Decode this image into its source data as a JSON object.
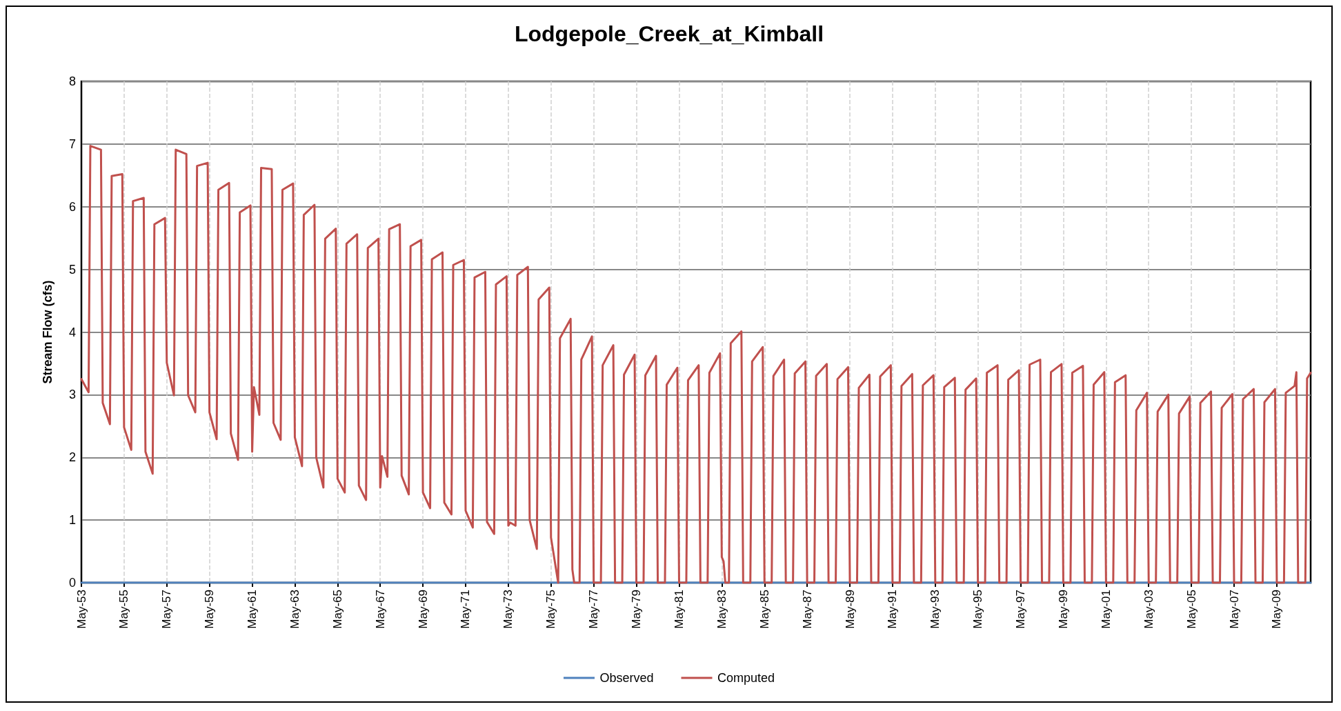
{
  "chart_data": {
    "type": "line",
    "title": "Lodgepole_Creek_at_Kimball",
    "ylabel": "Stream Flow (cfs)",
    "xlim": [
      "1953-05",
      "2010-12"
    ],
    "ylim": [
      0,
      8
    ],
    "yticks": [
      0,
      1,
      2,
      3,
      4,
      5,
      6,
      7,
      8
    ],
    "xticks": [
      {
        "value": "1953-05",
        "label": "May-53"
      },
      {
        "value": "1955-05",
        "label": "May-55"
      },
      {
        "value": "1957-05",
        "label": "May-57"
      },
      {
        "value": "1959-05",
        "label": "May-59"
      },
      {
        "value": "1961-05",
        "label": "May-61"
      },
      {
        "value": "1963-05",
        "label": "May-63"
      },
      {
        "value": "1965-05",
        "label": "May-65"
      },
      {
        "value": "1967-05",
        "label": "May-67"
      },
      {
        "value": "1969-05",
        "label": "May-69"
      },
      {
        "value": "1971-05",
        "label": "May-71"
      },
      {
        "value": "1973-05",
        "label": "May-73"
      },
      {
        "value": "1975-05",
        "label": "May-75"
      },
      {
        "value": "1977-05",
        "label": "May-77"
      },
      {
        "value": "1979-05",
        "label": "May-79"
      },
      {
        "value": "1981-05",
        "label": "May-81"
      },
      {
        "value": "1983-05",
        "label": "May-83"
      },
      {
        "value": "1985-05",
        "label": "May-85"
      },
      {
        "value": "1987-05",
        "label": "May-87"
      },
      {
        "value": "1989-05",
        "label": "May-89"
      },
      {
        "value": "1991-05",
        "label": "May-91"
      },
      {
        "value": "1993-05",
        "label": "May-93"
      },
      {
        "value": "1995-05",
        "label": "May-95"
      },
      {
        "value": "1997-05",
        "label": "May-97"
      },
      {
        "value": "1999-05",
        "label": "May-99"
      },
      {
        "value": "2001-05",
        "label": "May-01"
      },
      {
        "value": "2003-05",
        "label": "May-03"
      },
      {
        "value": "2005-05",
        "label": "May-05"
      },
      {
        "value": "2007-05",
        "label": "May-07"
      },
      {
        "value": "2009-05",
        "label": "May-09"
      }
    ],
    "grid": true,
    "legend": "bottom",
    "marker": "none",
    "line_style": "solid",
    "series": [
      {
        "name": "Observed",
        "color": "#4f81bd",
        "x": [
          "1953-05",
          "2010-12"
        ],
        "values": [
          0,
          0
        ]
      },
      {
        "name": "Computed",
        "color": "#c0504d",
        "x": [
          "1953-05",
          "1953-09",
          "1953-10",
          "1954-04",
          "1954-05",
          "1954-09",
          "1954-10",
          "1955-04",
          "1955-05",
          "1955-09",
          "1955-10",
          "1956-04",
          "1956-05",
          "1956-09",
          "1956-10",
          "1957-04",
          "1957-05",
          "1957-09",
          "1957-10",
          "1958-04",
          "1958-05",
          "1958-09",
          "1958-10",
          "1959-04",
          "1959-05",
          "1959-09",
          "1959-10",
          "1960-04",
          "1960-05",
          "1960-09",
          "1960-10",
          "1961-04",
          "1961-05",
          "1961-06",
          "1961-09",
          "1961-10",
          "1962-04",
          "1962-05",
          "1962-09",
          "1962-10",
          "1963-04",
          "1963-05",
          "1963-09",
          "1963-10",
          "1964-04",
          "1964-05",
          "1964-09",
          "1964-10",
          "1965-04",
          "1965-05",
          "1965-09",
          "1965-10",
          "1966-04",
          "1966-05",
          "1966-09",
          "1966-10",
          "1967-04",
          "1967-05",
          "1967-06",
          "1967-09",
          "1967-10",
          "1968-04",
          "1968-05",
          "1968-09",
          "1968-10",
          "1969-04",
          "1969-05",
          "1969-09",
          "1969-10",
          "1970-04",
          "1970-05",
          "1970-09",
          "1970-10",
          "1971-04",
          "1971-05",
          "1971-09",
          "1971-10",
          "1972-04",
          "1972-05",
          "1972-09",
          "1972-10",
          "1973-04",
          "1973-05",
          "1973-06",
          "1973-09",
          "1973-10",
          "1974-04",
          "1974-05",
          "1974-09",
          "1974-10",
          "1975-04",
          "1975-05",
          "1975-09",
          "1975-10",
          "1976-04",
          "1976-05",
          "1976-06",
          "1976-09",
          "1976-10",
          "1977-04",
          "1977-05",
          "1977-09",
          "1977-10",
          "1978-04",
          "1978-05",
          "1978-09",
          "1978-10",
          "1979-04",
          "1979-05",
          "1979-09",
          "1979-10",
          "1980-04",
          "1980-05",
          "1980-09",
          "1980-10",
          "1981-04",
          "1981-05",
          "1981-09",
          "1981-10",
          "1982-04",
          "1982-05",
          "1982-09",
          "1982-10",
          "1983-04",
          "1983-05",
          "1983-06",
          "1983-07",
          "1983-09",
          "1983-10",
          "1984-04",
          "1984-05",
          "1984-09",
          "1984-10",
          "1985-04",
          "1985-05",
          "1985-09",
          "1985-10",
          "1986-04",
          "1986-05",
          "1986-09",
          "1986-10",
          "1987-04",
          "1987-05",
          "1987-09",
          "1987-10",
          "1988-04",
          "1988-05",
          "1988-09",
          "1988-10",
          "1989-04",
          "1989-05",
          "1989-09",
          "1989-10",
          "1990-04",
          "1990-05",
          "1990-09",
          "1990-10",
          "1991-04",
          "1991-05",
          "1991-09",
          "1991-10",
          "1992-04",
          "1992-05",
          "1992-09",
          "1992-10",
          "1993-04",
          "1993-05",
          "1993-09",
          "1993-10",
          "1994-04",
          "1994-05",
          "1994-09",
          "1994-10",
          "1995-04",
          "1995-05",
          "1995-09",
          "1995-10",
          "1996-04",
          "1996-05",
          "1996-09",
          "1996-10",
          "1997-04",
          "1997-05",
          "1997-09",
          "1997-10",
          "1998-04",
          "1998-05",
          "1998-09",
          "1998-10",
          "1999-04",
          "1999-05",
          "1999-09",
          "1999-10",
          "2000-04",
          "2000-05",
          "2000-09",
          "2000-10",
          "2001-04",
          "2001-05",
          "2001-09",
          "2001-10",
          "2002-04",
          "2002-05",
          "2002-09",
          "2002-10",
          "2003-04",
          "2003-05",
          "2003-09",
          "2003-10",
          "2004-04",
          "2004-05",
          "2004-09",
          "2004-10",
          "2005-04",
          "2005-05",
          "2005-09",
          "2005-10",
          "2006-04",
          "2006-05",
          "2006-09",
          "2006-10",
          "2007-04",
          "2007-05",
          "2007-09",
          "2007-10",
          "2008-04",
          "2008-05",
          "2008-09",
          "2008-10",
          "2009-04",
          "2009-05",
          "2009-09",
          "2009-10",
          "2010-03",
          "2010-04",
          "2010-05",
          "2010-09",
          "2010-10",
          "2010-12"
        ],
        "values": [
          3.25,
          3.04,
          6.97,
          6.91,
          2.87,
          2.53,
          6.49,
          6.52,
          2.48,
          2.12,
          6.09,
          6.14,
          2.09,
          1.74,
          5.72,
          5.82,
          3.51,
          2.99,
          6.91,
          6.84,
          2.99,
          2.72,
          6.65,
          6.7,
          2.72,
          2.29,
          6.27,
          6.38,
          2.38,
          1.96,
          5.91,
          6.02,
          2.09,
          3.12,
          2.68,
          6.62,
          6.6,
          2.55,
          2.28,
          6.27,
          6.37,
          2.32,
          1.86,
          5.87,
          6.03,
          2.0,
          1.52,
          5.49,
          5.65,
          1.66,
          1.44,
          5.41,
          5.56,
          1.55,
          1.32,
          5.34,
          5.49,
          1.52,
          2.02,
          1.69,
          5.64,
          5.72,
          1.71,
          1.41,
          5.37,
          5.47,
          1.44,
          1.19,
          5.16,
          5.27,
          1.28,
          1.09,
          5.07,
          5.15,
          1.15,
          0.88,
          4.87,
          4.96,
          0.97,
          0.78,
          4.76,
          4.89,
          0.91,
          0.96,
          0.91,
          4.91,
          5.04,
          1.0,
          0.54,
          4.52,
          4.71,
          0.72,
          0,
          3.9,
          4.21,
          0.21,
          0,
          0,
          3.56,
          3.93,
          0,
          0,
          3.47,
          3.79,
          0,
          0,
          3.32,
          3.64,
          0,
          0,
          3.31,
          3.62,
          0,
          0,
          3.16,
          3.43,
          0,
          0,
          3.23,
          3.47,
          0,
          0,
          3.35,
          3.66,
          0.41,
          0.34,
          0,
          0,
          3.82,
          4.01,
          0,
          0,
          3.53,
          3.76,
          0,
          0,
          3.3,
          3.56,
          0,
          0,
          3.34,
          3.53,
          0,
          0,
          3.3,
          3.49,
          0,
          0,
          3.25,
          3.44,
          0,
          0,
          3.11,
          3.32,
          0,
          0,
          3.29,
          3.47,
          0,
          0,
          3.14,
          3.33,
          0,
          0,
          3.15,
          3.31,
          0,
          0,
          3.12,
          3.27,
          0,
          0,
          3.08,
          3.26,
          0,
          0,
          3.35,
          3.47,
          0,
          0,
          3.24,
          3.39,
          0,
          0,
          3.48,
          3.56,
          0,
          0,
          3.36,
          3.49,
          0,
          0,
          3.35,
          3.46,
          0,
          0,
          3.16,
          3.36,
          0,
          0,
          3.2,
          3.31,
          0,
          0,
          2.75,
          3.03,
          0,
          0,
          2.73,
          3.0,
          0,
          0,
          2.7,
          2.97,
          0,
          0,
          2.87,
          3.05,
          0,
          0,
          2.79,
          3.01,
          0,
          0,
          2.93,
          3.09,
          0,
          0,
          2.88,
          3.09,
          0,
          0,
          3.03,
          3.14,
          3.36,
          0,
          0,
          3.26,
          3.35
        ]
      }
    ]
  }
}
